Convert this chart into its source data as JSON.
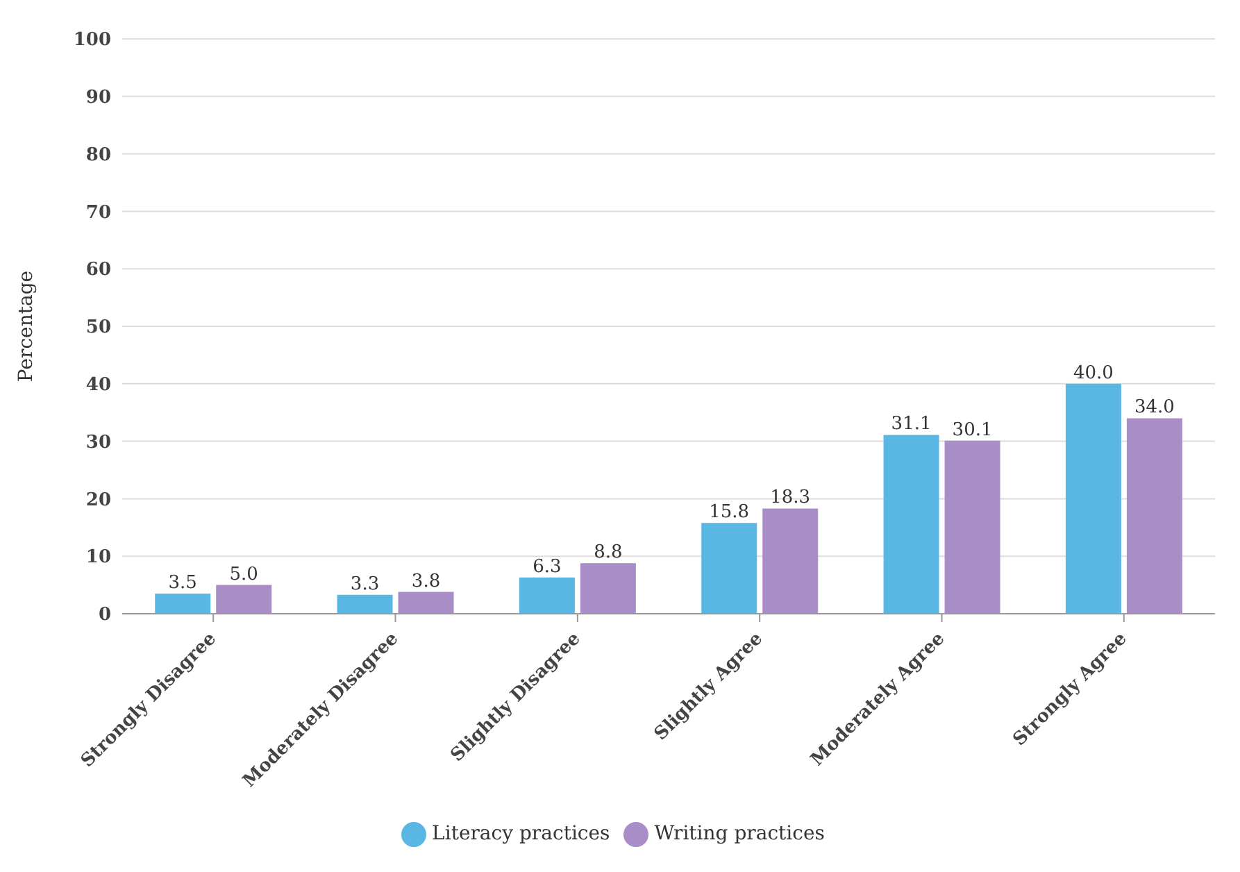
{
  "chart_data": {
    "type": "bar",
    "ylabel": "Percentage",
    "categories": [
      "Strongly Disagree",
      "Moderately Disagree",
      "Slightly Disagree",
      "Slightly Agree",
      "Moderately Agree",
      "Strongly Agree"
    ],
    "series": [
      {
        "name": "Literacy practices",
        "color": "#5ab6e2",
        "values": [
          3.5,
          3.3,
          6.3,
          15.8,
          31.1,
          40.0
        ]
      },
      {
        "name": "Writing practices",
        "color": "#a98dc7",
        "values": [
          5.0,
          3.8,
          8.8,
          18.3,
          30.1,
          34.0
        ]
      }
    ],
    "ylim": [
      0,
      100
    ],
    "yticks": [
      0,
      10,
      20,
      30,
      40,
      50,
      60,
      70,
      80,
      90,
      100
    ],
    "grid": "y",
    "legend": "bottom",
    "value_labels": [
      [
        "3.5",
        "3.3",
        "6.3",
        "15.8",
        "31.1",
        "40.0"
      ],
      [
        "5.0",
        "3.8",
        "8.8",
        "18.3",
        "30.1",
        "34.0"
      ]
    ]
  }
}
